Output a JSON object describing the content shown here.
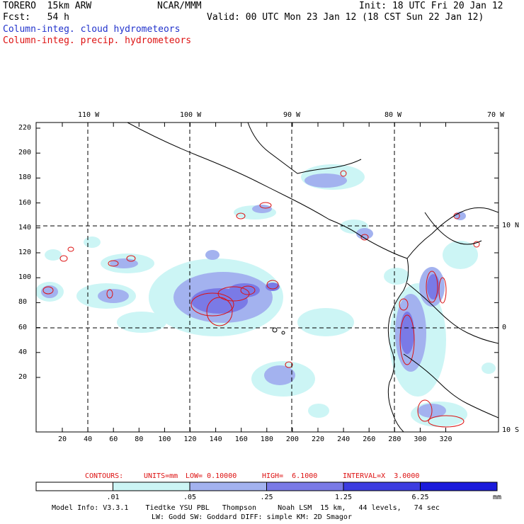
{
  "header": {
    "left_line1": "TORERO  15km ARW",
    "center_line1": "NCAR/MMM",
    "right_line1": "Init: 18 UTC Fri 20 Jan 12",
    "left_line2": "Fcst:   54 h",
    "right_line2": "Valid: 00 UTC Mon 23 Jan 12 (18 CST Sun 22 Jan 12)",
    "field1": "Column-integ. cloud hydrometeors",
    "field2": "Column-integ. precip. hydrometeors",
    "field1_color": "#2233cc",
    "field2_color": "#dd1111"
  },
  "map": {
    "lon_labels": [
      "110 W",
      "100 W",
      "90 W",
      "80 W",
      "70 W"
    ],
    "lat_labels": [
      "10 N",
      "0",
      "10 S"
    ],
    "y_grid_labels": [
      "220",
      "200",
      "180",
      "160",
      "140",
      "120",
      "100",
      "80",
      "60",
      "40",
      "20"
    ],
    "x_grid_labels": [
      "20",
      "40",
      "60",
      "80",
      "100",
      "120",
      "140",
      "160",
      "180",
      "200",
      "220",
      "240",
      "260",
      "280",
      "300",
      "320"
    ]
  },
  "contour_info": {
    "contours": "CONTOURS:",
    "units": "UNITS=mm",
    "low": "LOW= 0.10000",
    "high": "HIGH=  6.1000",
    "interval": "INTERVAL=X  3.0000"
  },
  "colorbar": {
    "labels": [
      ".01",
      ".05",
      ".25",
      "1.25",
      "6.25"
    ],
    "unit": "mm",
    "colors": [
      "#ffffff",
      "#ccf5f5",
      "#a3b2ef",
      "#7a7ae6",
      "#3d3de0",
      "#1a1adb"
    ]
  },
  "model_info": {
    "line1": "Model Info: V3.3.1    Tiedtke YSU PBL   Thompson     Noah LSM  15 km,   44 levels,   74 sec",
    "line2": "LW: Godd SW: Goddard DIFF: simple KM: 2D Smagor"
  }
}
